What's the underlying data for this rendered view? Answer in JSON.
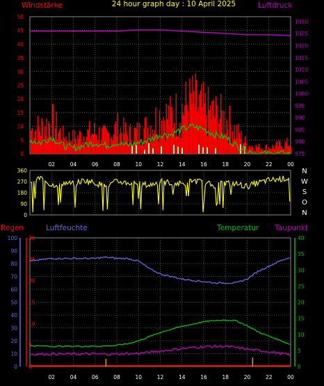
{
  "header": {
    "title": "24 hour graph day : 10 April 2025",
    "left_label": "Windstärke",
    "right_label": "Luftdruck"
  },
  "colors": {
    "background": "#000000",
    "grid": "#8a8a8a",
    "wind": "#ff0000",
    "wind_avg": "#00c800",
    "gust_marks": "#c8ffc8",
    "pressure": "#c000c0",
    "direction": "#ffff00",
    "rain": "#ff0000",
    "humidity": "#6a6ae8",
    "temperature": "#00c000",
    "dewpoint": "#c000c0",
    "rain_axis": "#ff0000",
    "humidity_axis": "#6a6ae8",
    "temp_axis": "#00c000"
  },
  "chart_data": [
    {
      "type": "bar",
      "panel": "wind_pressure",
      "x_ticks": [
        "02",
        "04",
        "06",
        "08",
        "10",
        "12",
        "14",
        "16",
        "18",
        "20",
        "22",
        "00"
      ],
      "y_left_ticks": [
        "0",
        "5",
        "10",
        "15",
        "20",
        "25",
        "30",
        "35",
        "40",
        "45",
        "50"
      ],
      "y_right_ticks": [
        "975",
        "980",
        "985",
        "990",
        "995",
        "1000",
        "1005",
        "1010",
        "1015",
        "1020",
        "1025",
        "1030"
      ],
      "ylim_left": [
        0,
        50
      ],
      "ylim_right": [
        975,
        1032
      ],
      "grid": true,
      "series": [
        {
          "name": "Windstärke",
          "axis": "left",
          "hours": [
            0,
            1,
            2,
            3,
            4,
            5,
            6,
            7,
            8,
            9,
            10,
            11,
            12,
            13,
            14,
            15,
            16,
            17,
            18,
            19,
            20,
            21,
            22,
            23,
            24
          ],
          "values": [
            11,
            12,
            15,
            8,
            7,
            9,
            10,
            8,
            12,
            9,
            10,
            13,
            18,
            17,
            21,
            24,
            20,
            18,
            16,
            10,
            4,
            3,
            3,
            4,
            5
          ]
        },
        {
          "name": "Windstärke (avg)",
          "axis": "left",
          "hours": [
            0,
            1,
            2,
            3,
            4,
            5,
            6,
            7,
            8,
            9,
            10,
            11,
            12,
            13,
            14,
            15,
            16,
            17,
            18,
            19,
            20,
            21,
            22,
            23,
            24
          ],
          "values": [
            5,
            4,
            6,
            3,
            2,
            3,
            4,
            3,
            4,
            3,
            4,
            5,
            7,
            7,
            9,
            10,
            9,
            7,
            6,
            3,
            1,
            0,
            0,
            0,
            0
          ]
        },
        {
          "name": "Luftdruck",
          "axis": "right",
          "hours": [
            0,
            2,
            4,
            6,
            8,
            10,
            12,
            14,
            16,
            18,
            20,
            22,
            24
          ],
          "values": [
            1026,
            1026,
            1026,
            1026,
            1026,
            1026.5,
            1026.5,
            1026,
            1025.5,
            1025,
            1024.5,
            1024.5,
            1024.2
          ]
        }
      ]
    },
    {
      "type": "line",
      "panel": "wind_direction",
      "y_ticks": [
        "0",
        "90",
        "180",
        "270",
        "360"
      ],
      "y_right_labels": [
        "N",
        "W",
        "S",
        "O",
        "N"
      ],
      "ylim": [
        0,
        360
      ],
      "grid": true,
      "series": [
        {
          "name": "Windrichtung",
          "hours": [
            0,
            1,
            2,
            3,
            4,
            5,
            6,
            7,
            8,
            9,
            10,
            11,
            12,
            13,
            14,
            15,
            16,
            17,
            18,
            19,
            20,
            21,
            22,
            23,
            24
          ],
          "values": [
            270,
            300,
            240,
            260,
            250,
            280,
            260,
            230,
            270,
            260,
            250,
            240,
            270,
            260,
            250,
            280,
            260,
            240,
            260,
            250,
            230,
            260,
            280,
            290,
            300
          ]
        }
      ]
    },
    {
      "type": "line",
      "panel": "humidity_temperature",
      "x_ticks": [
        "02",
        "04",
        "06",
        "08",
        "10",
        "12",
        "14",
        "16",
        "18",
        "20",
        "22",
        "00"
      ],
      "left_outer_label": "Regen",
      "left_inner_label": "Luftfeuchte",
      "right_inner_label": "Temperatur",
      "right_outer_label": "Taupunkt",
      "y_humidity_ticks": [
        "0",
        "10",
        "20",
        "30",
        "40",
        "50",
        "60",
        "70",
        "80",
        "90",
        "100"
      ],
      "y_rain_ticks": [
        "0",
        "5",
        "10",
        "15",
        "20",
        "25",
        "30"
      ],
      "y_temp_ticks": [
        "0",
        "5",
        "10",
        "15",
        "20",
        "25",
        "30",
        "35",
        "40"
      ],
      "ylim_humidity": [
        0,
        100
      ],
      "ylim_rain": [
        0,
        30
      ],
      "ylim_temp": [
        0,
        40
      ],
      "grid": true,
      "series": [
        {
          "name": "Luftfeuchte",
          "axis": "humidity",
          "hours": [
            0,
            2,
            4,
            6,
            7,
            8,
            9,
            10,
            11,
            12,
            13,
            14,
            15,
            16,
            17,
            18,
            19,
            20,
            21,
            22,
            23,
            24
          ],
          "values": [
            82,
            84,
            84,
            84,
            85,
            84,
            84,
            82,
            76,
            72,
            70,
            68,
            67,
            66,
            65,
            65,
            65,
            68,
            74,
            78,
            82,
            85
          ]
        },
        {
          "name": "Temperatur",
          "axis": "temp",
          "hours": [
            0,
            2,
            4,
            6,
            7,
            8,
            9,
            10,
            11,
            12,
            13,
            14,
            15,
            16,
            17,
            18,
            19,
            20,
            21,
            22,
            23,
            24
          ],
          "values": [
            6.5,
            6.3,
            6.3,
            6.3,
            6.4,
            6.6,
            7.1,
            8.0,
            9.3,
            10.6,
            11.6,
            12.5,
            13.2,
            13.9,
            14.3,
            14.5,
            14.2,
            12.7,
            10.8,
            9.4,
            8.2,
            6.8
          ]
        },
        {
          "name": "Taupunkt",
          "axis": "temp",
          "hours": [
            0,
            2,
            4,
            6,
            8,
            10,
            12,
            14,
            16,
            18,
            20,
            22,
            24
          ],
          "values": [
            3.8,
            3.9,
            3.9,
            3.9,
            3.9,
            4.1,
            4.8,
            5.6,
            6.2,
            6.3,
            5.4,
            4.6,
            3.6
          ]
        },
        {
          "name": "Regen",
          "axis": "rain",
          "hours": [
            0,
            7,
            20.5,
            24
          ],
          "values": [
            0,
            1.8,
            2.1,
            0
          ]
        }
      ]
    }
  ]
}
